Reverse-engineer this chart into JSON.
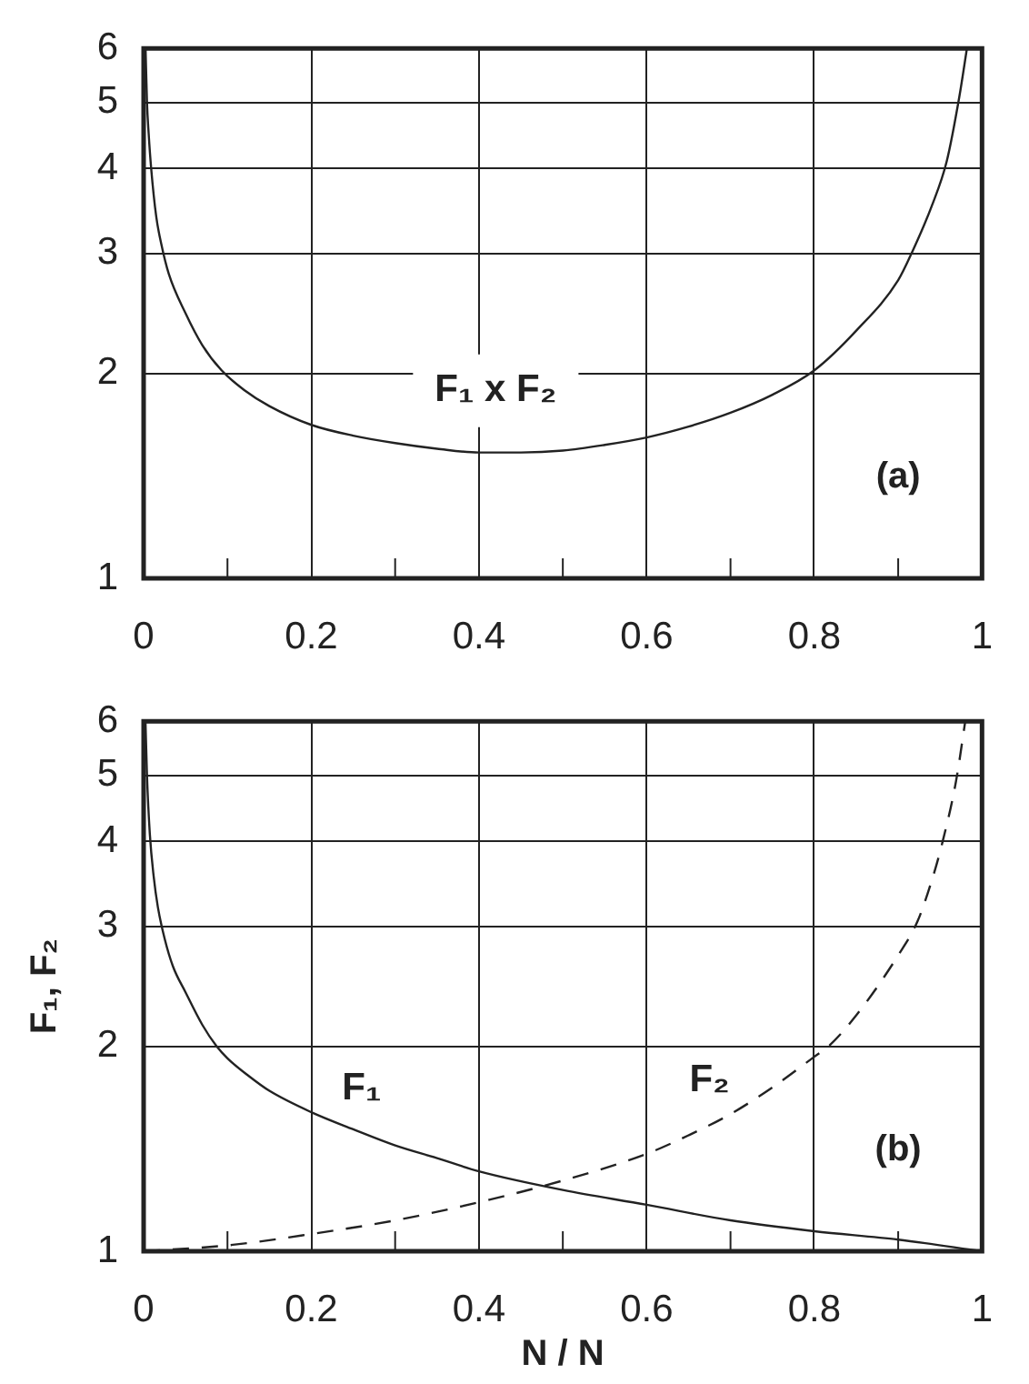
{
  "chart_data": [
    {
      "type": "line",
      "series": [
        {
          "name": "F₁ x F₂",
          "color": "#222222",
          "x": [
            0.0023,
            0.004,
            0.006,
            0.009,
            0.015,
            0.021,
            0.03,
            0.05,
            0.07,
            0.093,
            0.12,
            0.15,
            0.2,
            0.25,
            0.3,
            0.35,
            0.4,
            0.45,
            0.5,
            0.55,
            0.6,
            0.65,
            0.7,
            0.75,
            0.8,
            0.85,
            0.9,
            0.917,
            0.94,
            0.958,
            0.973,
            0.982
          ],
          "values": [
            6,
            5,
            4.5,
            4,
            3.4,
            3.1,
            2.8,
            2.45,
            2.2,
            2.02,
            1.89,
            1.79,
            1.68,
            1.62,
            1.58,
            1.55,
            1.53,
            1.53,
            1.54,
            1.57,
            1.61,
            1.67,
            1.75,
            1.86,
            2.02,
            2.31,
            2.74,
            3.02,
            3.52,
            4.1,
            5.1,
            6
          ]
        }
      ],
      "xlim": [
        0,
        1
      ],
      "ylim": [
        1,
        6
      ],
      "xticks": [
        0,
        {
          "value": 0.1,
          "label": null
        },
        0.2,
        {
          "value": 0.3,
          "label": null
        },
        0.4,
        {
          "value": 0.5,
          "label": null
        },
        0.6,
        {
          "value": 0.7,
          "label": null
        },
        0.8,
        {
          "value": 0.9,
          "label": null
        },
        1
      ],
      "yticks": [
        1,
        2,
        3,
        4,
        5,
        6
      ],
      "log": "y",
      "grid": true,
      "annotations": [
        "(a)"
      ]
    },
    {
      "type": "line",
      "xlabel": "N / N",
      "ylabel": "F₁, F₂",
      "series": [
        {
          "name": "F₁",
          "color": "#222222",
          "x": [
            0.0022,
            0.004,
            0.0074,
            0.012,
            0.017,
            0.025,
            0.035,
            0.05,
            0.07,
            0.087,
            0.1,
            0.125,
            0.15,
            0.2,
            0.25,
            0.3,
            0.35,
            0.4,
            0.5,
            0.6,
            0.7,
            0.8,
            0.9,
            1
          ],
          "values": [
            6,
            5,
            4.1,
            3.55,
            3.2,
            2.88,
            2.62,
            2.4,
            2.15,
            2,
            1.92,
            1.81,
            1.72,
            1.6,
            1.51,
            1.43,
            1.37,
            1.31,
            1.23,
            1.17,
            1.11,
            1.07,
            1.04,
            1
          ]
        },
        {
          "name": "F₂",
          "color": "#222222",
          "line_style": "dashed",
          "x": [
            0,
            0.1,
            0.2,
            0.3,
            0.4,
            0.5,
            0.6,
            0.65,
            0.7,
            0.75,
            0.8,
            0.817,
            0.85,
            0.9,
            0.923,
            0.94,
            0.952,
            0.969,
            0.98
          ],
          "values": [
            1,
            1.02,
            1.06,
            1.11,
            1.18,
            1.27,
            1.39,
            1.48,
            1.59,
            1.74,
            1.93,
            2,
            2.22,
            2.72,
            3.05,
            3.5,
            3.95,
            4.9,
            6
          ]
        }
      ],
      "xlim": [
        0,
        1
      ],
      "ylim": [
        1,
        6
      ],
      "xticks": [
        0,
        {
          "value": 0.1,
          "label": null
        },
        0.2,
        {
          "value": 0.3,
          "label": null
        },
        0.4,
        {
          "value": 0.5,
          "label": null
        },
        0.6,
        {
          "value": 0.7,
          "label": null
        },
        0.8,
        {
          "value": 0.9,
          "label": null
        },
        1
      ],
      "yticks": [
        1,
        2,
        3,
        4,
        5,
        6
      ],
      "log": "y",
      "grid": true,
      "annotations": [
        "(b)"
      ]
    }
  ]
}
